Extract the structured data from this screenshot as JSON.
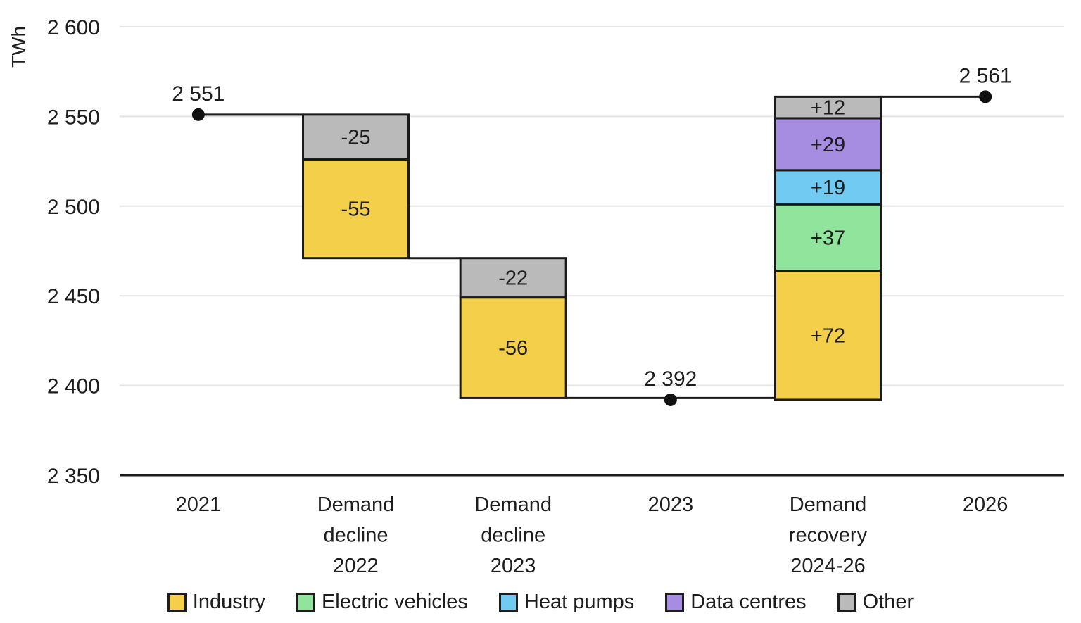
{
  "chart_data": {
    "type": "waterfall",
    "title": "",
    "unit": "TWh",
    "y_axis": {
      "min": 2350,
      "max": 2600,
      "step": 50,
      "grid": true,
      "ticks": [
        {
          "value": 2600,
          "label": "2 600"
        },
        {
          "value": 2550,
          "label": "2 550"
        },
        {
          "value": 2500,
          "label": "2 500"
        },
        {
          "value": 2450,
          "label": "2 450"
        },
        {
          "value": 2400,
          "label": "2 400"
        },
        {
          "value": 2350,
          "label": "2 350"
        }
      ]
    },
    "categories": [
      [
        "2021"
      ],
      [
        "Demand",
        "decline",
        "2022"
      ],
      [
        "Demand",
        "decline",
        "2023"
      ],
      [
        "2023"
      ],
      [
        "Demand",
        "recovery",
        "2024-26"
      ],
      [
        "2026"
      ]
    ],
    "series": {
      "Industry": {
        "color": "#F4D04A",
        "label_color": "#1d1d1d"
      },
      "Electric vehicles": {
        "color": "#90E49B",
        "label_color": "#1d1d1d"
      },
      "Heat pumps": {
        "color": "#70CAF2",
        "label_color": "#1d1d1d"
      },
      "Data centres": {
        "color": "#A78DE1",
        "label_color": "#ffffff"
      },
      "Other": {
        "color": "#BABABA",
        "label_color": "#1d1d1d"
      }
    },
    "legend_order": [
      "Industry",
      "Electric vehicles",
      "Heat pumps",
      "Data centres",
      "Other"
    ],
    "totals": [
      {
        "category_index": 0,
        "value": 2551,
        "label": "2 551"
      },
      {
        "category_index": 3,
        "value": 2392,
        "label": "2 392"
      },
      {
        "category_index": 5,
        "value": 2561,
        "label": "2 561"
      }
    ],
    "bars": [
      {
        "category_index": 1,
        "start": 2551,
        "segments": [
          {
            "series": "Other",
            "value": -25,
            "label": "-25"
          },
          {
            "series": "Industry",
            "value": -55,
            "label": "-55"
          }
        ]
      },
      {
        "category_index": 2,
        "start": 2471,
        "segments": [
          {
            "series": "Other",
            "value": -22,
            "label": "-22"
          },
          {
            "series": "Industry",
            "value": -56,
            "label": "-56"
          }
        ]
      },
      {
        "category_index": 4,
        "start": 2392,
        "segments": [
          {
            "series": "Industry",
            "value": 72,
            "label": "+72"
          },
          {
            "series": "Electric vehicles",
            "value": 37,
            "label": "+37"
          },
          {
            "series": "Heat pumps",
            "value": 19,
            "label": "+19"
          },
          {
            "series": "Data centres",
            "value": 29,
            "label": "+29"
          },
          {
            "series": "Other",
            "value": 12,
            "label": "+12"
          }
        ]
      }
    ],
    "connectors": [
      {
        "value": 2551,
        "from": {
          "category_index": 0,
          "anchor": "center"
        },
        "to": {
          "category_index": 1,
          "anchor": "left"
        }
      },
      {
        "value": 2471,
        "from": {
          "category_index": 1,
          "anchor": "right"
        },
        "to": {
          "category_index": 2,
          "anchor": "left"
        }
      },
      {
        "value": 2393,
        "from": {
          "category_index": 2,
          "anchor": "right"
        },
        "to": {
          "category_index": 4,
          "anchor": "left"
        }
      },
      {
        "value": 2561,
        "from": {
          "category_index": 4,
          "anchor": "right"
        },
        "to": {
          "category_index": 5,
          "anchor": "center"
        }
      }
    ]
  }
}
